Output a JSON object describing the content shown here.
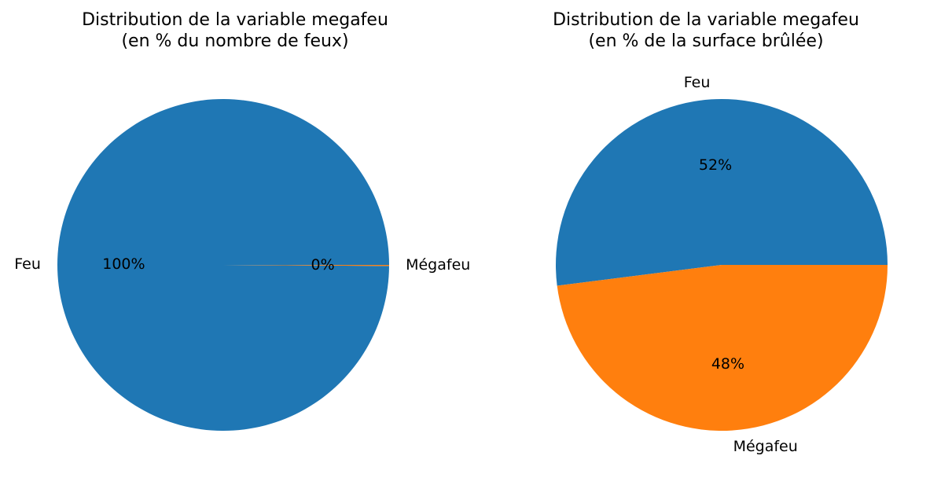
{
  "chart_data": [
    {
      "type": "pie",
      "title": "Distribution de la variable megafeu\n(en % du nombre de feux)",
      "title_lines": [
        "Distribution de la variable megafeu",
        "(en % du nombre de feux)"
      ],
      "labels": [
        "Feu",
        "Mégafeu"
      ],
      "values": [
        99.9,
        0.1
      ],
      "percent_labels": [
        "100%",
        "0%"
      ],
      "colors": [
        "#1f77b4",
        "#ff7f0e"
      ],
      "start_angle": 0
    },
    {
      "type": "pie",
      "title": "Distribution de la variable megafeu\n(en % de la surface brûlée)",
      "title_lines": [
        "Distribution de la variable megafeu",
        "(en % de la surface brûlée)"
      ],
      "labels": [
        "Feu",
        "Mégafeu"
      ],
      "values": [
        52,
        48
      ],
      "percent_labels": [
        "52%",
        "48%"
      ],
      "colors": [
        "#1f77b4",
        "#ff7f0e"
      ],
      "start_angle": 0
    }
  ]
}
